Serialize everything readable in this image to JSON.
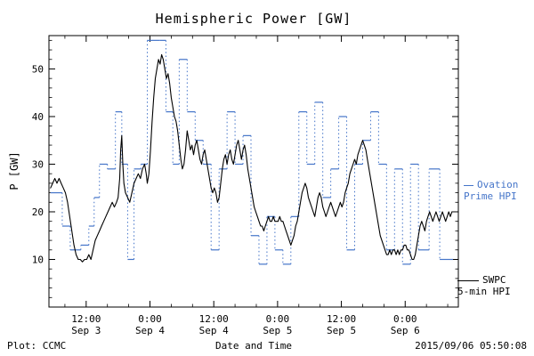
{
  "title": "Hemispheric Power [GW]",
  "axes": {
    "y_label": "P [GW]",
    "x_label": "Date and Time"
  },
  "footer": {
    "plot_credit": "Plot: CCMC",
    "timestamp": "2015/09/06 05:50:08"
  },
  "legend": {
    "ovation": {
      "line1": "Ovation",
      "line2": "Prime HPI"
    },
    "swpc": {
      "line1": "SWPC",
      "line2": "5-min HPI"
    }
  },
  "colors": {
    "ovation_blue": "#4575c9",
    "swpc_black": "#000000",
    "axis": "#000000",
    "background": "#ffffff"
  },
  "chart_data": {
    "type": "line",
    "title": "Hemispheric Power [GW]",
    "xlabel": "Date and Time",
    "ylabel": "P [GW]",
    "x_unit": "hours since 2015-09-03 00:00",
    "xlim": [
      5,
      82
    ],
    "ylim": [
      0,
      57
    ],
    "grid": false,
    "legend_position": "right",
    "yticks": [
      10,
      20,
      30,
      40,
      50
    ],
    "xticks": [
      {
        "t": 12,
        "time": "12:00",
        "date": "Sep 3"
      },
      {
        "t": 24,
        "time": "0:00",
        "date": "Sep 4"
      },
      {
        "t": 36,
        "time": "12:00",
        "date": "Sep 4"
      },
      {
        "t": 48,
        "time": "0:00",
        "date": "Sep 5"
      },
      {
        "t": 60,
        "time": "12:00",
        "date": "Sep 5"
      },
      {
        "t": 72,
        "time": "0:00",
        "date": "Sep 6"
      }
    ],
    "series": [
      {
        "name": "SWPC 5-min HPI",
        "style": "solid-line",
        "color": "#000000",
        "points": [
          [
            5.3,
            25
          ],
          [
            5.7,
            26
          ],
          [
            6.1,
            27
          ],
          [
            6.5,
            26
          ],
          [
            6.9,
            27
          ],
          [
            7.3,
            26
          ],
          [
            7.7,
            25
          ],
          [
            8.1,
            24
          ],
          [
            8.5,
            22
          ],
          [
            8.9,
            19
          ],
          [
            9.3,
            16
          ],
          [
            9.7,
            13
          ],
          [
            10.1,
            11
          ],
          [
            10.5,
            10
          ],
          [
            10.9,
            10
          ],
          [
            11.3,
            9.5
          ],
          [
            11.7,
            10
          ],
          [
            12.1,
            10
          ],
          [
            12.5,
            11
          ],
          [
            12.9,
            10
          ],
          [
            13.3,
            12
          ],
          [
            13.7,
            14
          ],
          [
            14.1,
            15
          ],
          [
            14.5,
            16
          ],
          [
            14.9,
            17
          ],
          [
            15.3,
            18
          ],
          [
            15.7,
            19
          ],
          [
            16.1,
            20
          ],
          [
            16.5,
            21
          ],
          [
            16.9,
            22
          ],
          [
            17.3,
            21
          ],
          [
            17.7,
            22
          ],
          [
            18,
            23
          ],
          [
            18.3,
            27
          ],
          [
            18.5,
            33
          ],
          [
            18.7,
            36
          ],
          [
            18.9,
            30
          ],
          [
            19.1,
            26
          ],
          [
            19.4,
            24
          ],
          [
            19.8,
            23
          ],
          [
            20.2,
            22
          ],
          [
            20.6,
            24
          ],
          [
            21,
            26
          ],
          [
            21.4,
            27
          ],
          [
            21.8,
            28
          ],
          [
            22.2,
            27
          ],
          [
            22.6,
            29
          ],
          [
            23,
            30
          ],
          [
            23.3,
            28
          ],
          [
            23.5,
            26
          ],
          [
            23.8,
            28
          ],
          [
            24.1,
            33
          ],
          [
            24.4,
            39
          ],
          [
            24.7,
            44
          ],
          [
            25,
            48
          ],
          [
            25.3,
            50
          ],
          [
            25.6,
            52
          ],
          [
            25.9,
            51
          ],
          [
            26.2,
            53
          ],
          [
            26.5,
            52
          ],
          [
            26.8,
            50
          ],
          [
            27.1,
            48
          ],
          [
            27.4,
            49
          ],
          [
            27.7,
            47
          ],
          [
            28,
            44
          ],
          [
            28.3,
            42
          ],
          [
            28.6,
            40
          ],
          [
            28.9,
            39
          ],
          [
            29.2,
            37
          ],
          [
            29.5,
            34
          ],
          [
            29.8,
            31
          ],
          [
            30.1,
            29
          ],
          [
            30.4,
            30
          ],
          [
            30.7,
            33
          ],
          [
            31,
            37
          ],
          [
            31.3,
            35
          ],
          [
            31.6,
            33
          ],
          [
            31.9,
            34
          ],
          [
            32.2,
            32
          ],
          [
            32.5,
            34
          ],
          [
            32.8,
            35
          ],
          [
            33.1,
            33
          ],
          [
            33.4,
            31
          ],
          [
            33.7,
            30
          ],
          [
            34,
            32
          ],
          [
            34.3,
            33
          ],
          [
            34.6,
            31
          ],
          [
            34.9,
            29
          ],
          [
            35.2,
            27
          ],
          [
            35.5,
            25
          ],
          [
            35.8,
            24
          ],
          [
            36.1,
            25
          ],
          [
            36.4,
            24
          ],
          [
            36.7,
            22
          ],
          [
            37,
            23
          ],
          [
            37.3,
            26
          ],
          [
            37.6,
            29
          ],
          [
            37.9,
            31
          ],
          [
            38.2,
            32
          ],
          [
            38.5,
            30
          ],
          [
            38.8,
            32
          ],
          [
            39.1,
            33
          ],
          [
            39.4,
            31
          ],
          [
            39.7,
            30
          ],
          [
            40,
            32
          ],
          [
            40.3,
            34
          ],
          [
            40.6,
            35
          ],
          [
            40.9,
            33
          ],
          [
            41.2,
            31
          ],
          [
            41.5,
            33
          ],
          [
            41.8,
            34
          ],
          [
            42.1,
            32
          ],
          [
            42.4,
            29
          ],
          [
            42.7,
            27
          ],
          [
            43,
            25
          ],
          [
            43.3,
            23
          ],
          [
            43.6,
            21
          ],
          [
            43.9,
            20
          ],
          [
            44.2,
            19
          ],
          [
            44.5,
            18
          ],
          [
            44.8,
            17
          ],
          [
            45.1,
            17
          ],
          [
            45.4,
            16
          ],
          [
            45.7,
            17
          ],
          [
            46,
            18
          ],
          [
            46.3,
            19
          ],
          [
            46.6,
            18
          ],
          [
            46.9,
            18
          ],
          [
            47.2,
            19
          ],
          [
            47.5,
            18
          ],
          [
            47.8,
            18
          ],
          [
            48.1,
            18
          ],
          [
            48.4,
            19
          ],
          [
            48.7,
            18
          ],
          [
            49,
            18
          ],
          [
            49.3,
            17
          ],
          [
            49.6,
            16
          ],
          [
            49.9,
            15
          ],
          [
            50.2,
            14
          ],
          [
            50.5,
            13
          ],
          [
            50.8,
            14
          ],
          [
            51.1,
            15
          ],
          [
            51.4,
            17
          ],
          [
            51.7,
            18
          ],
          [
            52,
            20
          ],
          [
            52.3,
            22
          ],
          [
            52.6,
            24
          ],
          [
            52.9,
            25
          ],
          [
            53.2,
            26
          ],
          [
            53.5,
            25
          ],
          [
            53.8,
            23
          ],
          [
            54.1,
            22
          ],
          [
            54.4,
            21
          ],
          [
            54.7,
            20
          ],
          [
            55,
            19
          ],
          [
            55.3,
            21
          ],
          [
            55.6,
            23
          ],
          [
            55.9,
            24
          ],
          [
            56.2,
            23
          ],
          [
            56.5,
            21
          ],
          [
            56.8,
            20
          ],
          [
            57.1,
            19
          ],
          [
            57.4,
            20
          ],
          [
            57.7,
            21
          ],
          [
            58,
            22
          ],
          [
            58.3,
            21
          ],
          [
            58.6,
            20
          ],
          [
            58.9,
            19
          ],
          [
            59.2,
            20
          ],
          [
            59.5,
            21
          ],
          [
            59.8,
            22
          ],
          [
            60.1,
            21
          ],
          [
            60.4,
            22
          ],
          [
            60.7,
            24
          ],
          [
            61,
            25
          ],
          [
            61.3,
            26
          ],
          [
            61.6,
            28
          ],
          [
            61.9,
            29
          ],
          [
            62.2,
            30
          ],
          [
            62.5,
            31
          ],
          [
            62.8,
            30
          ],
          [
            63.1,
            32
          ],
          [
            63.4,
            33
          ],
          [
            63.7,
            34
          ],
          [
            64,
            35
          ],
          [
            64.3,
            34
          ],
          [
            64.6,
            33
          ],
          [
            64.9,
            31
          ],
          [
            65.2,
            29
          ],
          [
            65.5,
            27
          ],
          [
            65.8,
            25
          ],
          [
            66.1,
            23
          ],
          [
            66.4,
            21
          ],
          [
            66.7,
            19
          ],
          [
            67,
            17
          ],
          [
            67.3,
            15
          ],
          [
            67.6,
            14
          ],
          [
            67.9,
            13
          ],
          [
            68.2,
            12
          ],
          [
            68.5,
            11
          ],
          [
            68.8,
            11
          ],
          [
            69.1,
            12
          ],
          [
            69.4,
            11
          ],
          [
            69.7,
            12
          ],
          [
            70,
            12
          ],
          [
            70.3,
            11
          ],
          [
            70.6,
            12
          ],
          [
            70.9,
            11
          ],
          [
            71.2,
            12
          ],
          [
            71.5,
            12
          ],
          [
            71.8,
            13
          ],
          [
            72.1,
            13
          ],
          [
            72.4,
            12
          ],
          [
            72.7,
            12
          ],
          [
            73,
            11
          ],
          [
            73.3,
            10
          ],
          [
            73.6,
            10
          ],
          [
            73.9,
            11
          ],
          [
            74.2,
            13
          ],
          [
            74.5,
            15
          ],
          [
            74.8,
            17
          ],
          [
            75.1,
            18
          ],
          [
            75.4,
            17
          ],
          [
            75.7,
            16
          ],
          [
            76,
            18
          ],
          [
            76.3,
            19
          ],
          [
            76.6,
            20
          ],
          [
            76.9,
            19
          ],
          [
            77.2,
            18
          ],
          [
            77.5,
            19
          ],
          [
            77.8,
            20
          ],
          [
            78.1,
            19
          ],
          [
            78.4,
            18
          ],
          [
            78.7,
            19
          ],
          [
            79,
            20
          ],
          [
            79.3,
            19
          ],
          [
            79.6,
            18
          ],
          [
            79.9,
            19
          ],
          [
            80.2,
            20
          ],
          [
            80.5,
            19
          ],
          [
            80.8,
            20
          ]
        ]
      },
      {
        "name": "Ovation Prime HPI",
        "style": "step-dotted",
        "color": "#4575c9",
        "end_t": 81,
        "steps": [
          [
            5.3,
            24
          ],
          [
            7.5,
            17
          ],
          [
            9,
            12
          ],
          [
            11,
            13
          ],
          [
            12.5,
            17
          ],
          [
            13.5,
            23
          ],
          [
            14.5,
            30
          ],
          [
            16,
            29
          ],
          [
            17.5,
            41
          ],
          [
            18.7,
            30
          ],
          [
            19.8,
            10
          ],
          [
            21,
            29
          ],
          [
            22.3,
            30
          ],
          [
            23.5,
            56
          ],
          [
            25.8,
            56
          ],
          [
            27,
            41
          ],
          [
            28.3,
            30
          ],
          [
            29.5,
            52
          ],
          [
            31,
            41
          ],
          [
            32.5,
            35
          ],
          [
            34,
            30
          ],
          [
            35.5,
            12
          ],
          [
            37,
            29
          ],
          [
            38.5,
            41
          ],
          [
            40,
            30
          ],
          [
            41.5,
            36
          ],
          [
            43,
            15
          ],
          [
            44.5,
            9
          ],
          [
            46,
            19
          ],
          [
            47.5,
            12
          ],
          [
            49,
            9
          ],
          [
            50.5,
            19
          ],
          [
            52,
            41
          ],
          [
            53.5,
            30
          ],
          [
            55,
            43
          ],
          [
            56.5,
            23
          ],
          [
            58,
            29
          ],
          [
            59.5,
            40
          ],
          [
            61,
            12
          ],
          [
            62.5,
            30
          ],
          [
            64,
            35
          ],
          [
            65.5,
            41
          ],
          [
            67,
            30
          ],
          [
            68.5,
            12
          ],
          [
            70,
            29
          ],
          [
            71.5,
            9
          ],
          [
            73,
            30
          ],
          [
            74.5,
            12
          ],
          [
            76.5,
            29
          ],
          [
            78.5,
            10
          ]
        ]
      }
    ]
  }
}
